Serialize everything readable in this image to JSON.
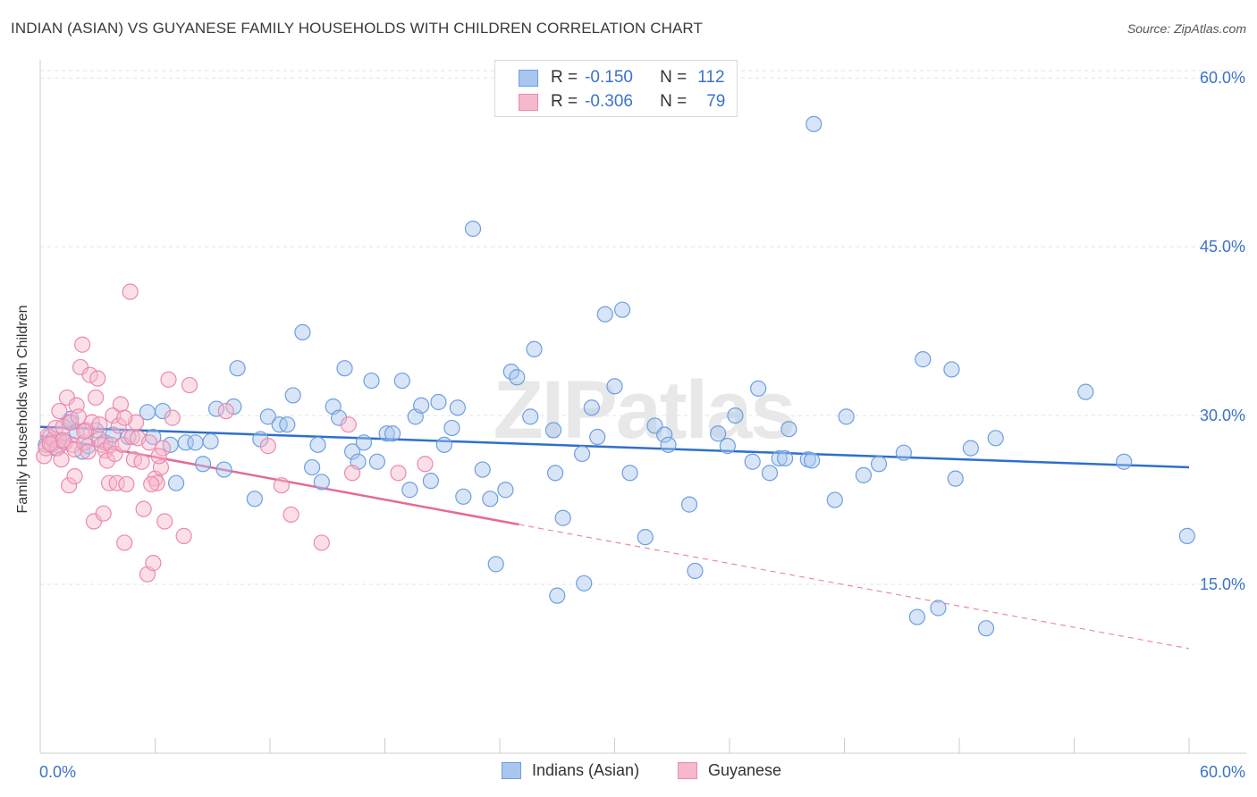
{
  "title": "INDIAN (ASIAN) VS GUYANESE FAMILY HOUSEHOLDS WITH CHILDREN CORRELATION CHART",
  "source": "Source: ZipAtlas.com",
  "watermark": "ZIPatlas",
  "legend": {
    "rows": [
      {
        "r_label": "R =",
        "r_value": "-0.150",
        "n_label": "N =",
        "n_value": "112",
        "color": "#a8c6ee",
        "stroke": "#6d9fe0"
      },
      {
        "r_label": "R =",
        "r_value": "-0.306",
        "n_label": "N =",
        "n_value": "79",
        "color": "#f6b8cd",
        "stroke": "#ec89ac"
      }
    ]
  },
  "bottom_legend": [
    {
      "label": "Indians (Asian)",
      "color": "#a8c6ee",
      "stroke": "#6d9fe0"
    },
    {
      "label": "Guyanese",
      "color": "#f6b8cd",
      "stroke": "#ec89ac"
    }
  ],
  "chart_data": {
    "type": "scatter",
    "title": "INDIAN (ASIAN) VS GUYANESE FAMILY HOUSEHOLDS WITH CHILDREN CORRELATION CHART",
    "xlabel": "",
    "ylabel": "Family Households with Children",
    "xlim": [
      0,
      60
    ],
    "ylim": [
      0,
      62
    ],
    "x_tick_labels": [
      "0.0%",
      "60.0%"
    ],
    "y_ticks": [
      15,
      30,
      45,
      60
    ],
    "y_tick_labels": [
      "15.0%",
      "30.0%",
      "45.0%",
      "60.0%"
    ],
    "grid": true,
    "series": [
      {
        "name": "Indians (Asian)",
        "color": "#a8c6ee",
        "stroke": "#6d9fe0",
        "trend": {
          "x": [
            0,
            60
          ],
          "y": [
            29.0,
            25.4
          ],
          "line_color": "#2f6fcc",
          "dashed_from": null
        },
        "points": [
          [
            0.3,
            27.4
          ],
          [
            0.5,
            28.1
          ],
          [
            0.8,
            27.1
          ],
          [
            1.0,
            27.8
          ],
          [
            1.3,
            27.6
          ],
          [
            1.5,
            29.4
          ],
          [
            1.9,
            28.6
          ],
          [
            2.2,
            26.8
          ],
          [
            2.5,
            27.3
          ],
          [
            2.9,
            28.7
          ],
          [
            3.4,
            27.6
          ],
          [
            3.8,
            28.3
          ],
          [
            4.6,
            28.1
          ],
          [
            5.6,
            30.3
          ],
          [
            5.9,
            28.1
          ],
          [
            6.4,
            30.4
          ],
          [
            6.8,
            27.4
          ],
          [
            7.1,
            24.0
          ],
          [
            7.6,
            27.6
          ],
          [
            8.1,
            27.6
          ],
          [
            8.5,
            25.7
          ],
          [
            8.9,
            27.7
          ],
          [
            9.2,
            30.6
          ],
          [
            9.6,
            25.2
          ],
          [
            10.1,
            30.8
          ],
          [
            10.3,
            34.2
          ],
          [
            11.2,
            22.6
          ],
          [
            11.5,
            27.9
          ],
          [
            11.9,
            29.9
          ],
          [
            12.5,
            29.2
          ],
          [
            12.9,
            29.2
          ],
          [
            13.2,
            31.8
          ],
          [
            13.7,
            37.4
          ],
          [
            14.2,
            25.4
          ],
          [
            14.5,
            27.4
          ],
          [
            14.7,
            24.1
          ],
          [
            15.3,
            30.8
          ],
          [
            15.6,
            29.8
          ],
          [
            15.9,
            34.2
          ],
          [
            16.3,
            26.8
          ],
          [
            16.6,
            25.9
          ],
          [
            16.9,
            27.6
          ],
          [
            17.3,
            33.1
          ],
          [
            17.6,
            25.9
          ],
          [
            18.1,
            28.4
          ],
          [
            18.4,
            28.4
          ],
          [
            18.9,
            33.1
          ],
          [
            19.3,
            23.4
          ],
          [
            19.6,
            29.9
          ],
          [
            19.9,
            30.9
          ],
          [
            20.4,
            24.2
          ],
          [
            20.8,
            31.2
          ],
          [
            21.1,
            27.4
          ],
          [
            21.5,
            28.9
          ],
          [
            21.8,
            30.7
          ],
          [
            22.1,
            22.8
          ],
          [
            22.6,
            46.6
          ],
          [
            23.1,
            25.2
          ],
          [
            23.5,
            22.6
          ],
          [
            23.8,
            16.8
          ],
          [
            24.3,
            23.4
          ],
          [
            24.6,
            33.9
          ],
          [
            24.9,
            33.4
          ],
          [
            25.6,
            29.9
          ],
          [
            25.8,
            35.9
          ],
          [
            26.8,
            28.7
          ],
          [
            26.9,
            24.9
          ],
          [
            27.0,
            14.0
          ],
          [
            27.3,
            20.9
          ],
          [
            28.3,
            26.6
          ],
          [
            28.4,
            15.1
          ],
          [
            28.8,
            30.7
          ],
          [
            29.1,
            28.1
          ],
          [
            29.5,
            39.0
          ],
          [
            30.0,
            32.6
          ],
          [
            30.4,
            39.4
          ],
          [
            30.8,
            24.9
          ],
          [
            31.6,
            19.2
          ],
          [
            32.1,
            29.1
          ],
          [
            32.6,
            28.3
          ],
          [
            32.8,
            27.4
          ],
          [
            33.9,
            22.1
          ],
          [
            34.2,
            16.2
          ],
          [
            35.4,
            28.4
          ],
          [
            35.9,
            27.3
          ],
          [
            36.3,
            30.0
          ],
          [
            37.2,
            25.9
          ],
          [
            37.5,
            32.4
          ],
          [
            38.1,
            24.9
          ],
          [
            38.6,
            26.2
          ],
          [
            38.9,
            26.2
          ],
          [
            39.1,
            28.8
          ],
          [
            40.1,
            26.1
          ],
          [
            40.3,
            26.0
          ],
          [
            40.4,
            55.9
          ],
          [
            41.5,
            22.5
          ],
          [
            42.1,
            29.9
          ],
          [
            43.0,
            24.7
          ],
          [
            43.8,
            25.7
          ],
          [
            45.1,
            26.7
          ],
          [
            45.8,
            12.1
          ],
          [
            46.1,
            35.0
          ],
          [
            46.9,
            12.9
          ],
          [
            47.6,
            34.1
          ],
          [
            47.8,
            24.4
          ],
          [
            48.6,
            27.1
          ],
          [
            49.4,
            11.1
          ],
          [
            49.9,
            28.0
          ],
          [
            54.6,
            32.1
          ],
          [
            56.6,
            25.9
          ],
          [
            59.9,
            19.3
          ],
          [
            1.6,
            29.7
          ]
        ]
      },
      {
        "name": "Guyanese",
        "color": "#f6b8cd",
        "stroke": "#ec89ac",
        "trend": {
          "x": [
            0,
            60
          ],
          "y": [
            28.2,
            9.3
          ],
          "line_color": "#e36b96",
          "dashed_from": 25
        },
        "points": [
          [
            0.2,
            26.4
          ],
          [
            0.3,
            27.1
          ],
          [
            0.4,
            28.2
          ],
          [
            0.6,
            27.4
          ],
          [
            0.7,
            27.9
          ],
          [
            0.8,
            28.9
          ],
          [
            0.9,
            27.1
          ],
          [
            1.0,
            30.4
          ],
          [
            1.1,
            26.1
          ],
          [
            1.2,
            29.0
          ],
          [
            1.3,
            27.6
          ],
          [
            1.4,
            31.6
          ],
          [
            1.5,
            23.8
          ],
          [
            1.6,
            29.4
          ],
          [
            1.7,
            27.4
          ],
          [
            1.8,
            27.0
          ],
          [
            1.9,
            30.9
          ],
          [
            2.0,
            29.9
          ],
          [
            2.1,
            34.3
          ],
          [
            2.2,
            36.3
          ],
          [
            2.3,
            27.6
          ],
          [
            2.4,
            28.7
          ],
          [
            2.5,
            26.8
          ],
          [
            2.6,
            33.6
          ],
          [
            2.7,
            29.4
          ],
          [
            2.8,
            20.6
          ],
          [
            2.9,
            31.6
          ],
          [
            3.0,
            33.3
          ],
          [
            3.1,
            27.9
          ],
          [
            3.2,
            27.4
          ],
          [
            3.3,
            21.3
          ],
          [
            3.4,
            26.9
          ],
          [
            3.5,
            26.0
          ],
          [
            3.6,
            24.0
          ],
          [
            3.7,
            27.4
          ],
          [
            3.8,
            30.0
          ],
          [
            3.9,
            26.6
          ],
          [
            4.0,
            24.0
          ],
          [
            4.1,
            29.1
          ],
          [
            4.2,
            31.0
          ],
          [
            4.3,
            27.4
          ],
          [
            4.4,
            18.7
          ],
          [
            4.5,
            23.9
          ],
          [
            4.7,
            41.0
          ],
          [
            4.8,
            28.1
          ],
          [
            4.9,
            26.1
          ],
          [
            5.0,
            29.4
          ],
          [
            5.1,
            28.0
          ],
          [
            5.3,
            25.9
          ],
          [
            5.4,
            21.7
          ],
          [
            5.6,
            15.9
          ],
          [
            5.7,
            27.6
          ],
          [
            5.9,
            16.9
          ],
          [
            6.0,
            24.4
          ],
          [
            6.1,
            24.0
          ],
          [
            6.3,
            25.4
          ],
          [
            6.4,
            27.1
          ],
          [
            6.5,
            20.6
          ],
          [
            6.7,
            33.2
          ],
          [
            6.9,
            29.8
          ],
          [
            7.5,
            19.3
          ],
          [
            7.8,
            32.7
          ],
          [
            9.7,
            30.4
          ],
          [
            11.9,
            27.3
          ],
          [
            12.6,
            23.8
          ],
          [
            13.1,
            21.2
          ],
          [
            14.7,
            18.7
          ],
          [
            16.1,
            29.2
          ],
          [
            16.3,
            24.9
          ],
          [
            18.7,
            24.9
          ],
          [
            20.1,
            25.7
          ],
          [
            1.2,
            27.8
          ],
          [
            2.3,
            28.6
          ],
          [
            3.1,
            29.2
          ],
          [
            5.8,
            23.9
          ],
          [
            6.2,
            26.4
          ],
          [
            0.5,
            27.5
          ],
          [
            1.8,
            24.6
          ],
          [
            4.4,
            29.8
          ]
        ]
      }
    ]
  }
}
